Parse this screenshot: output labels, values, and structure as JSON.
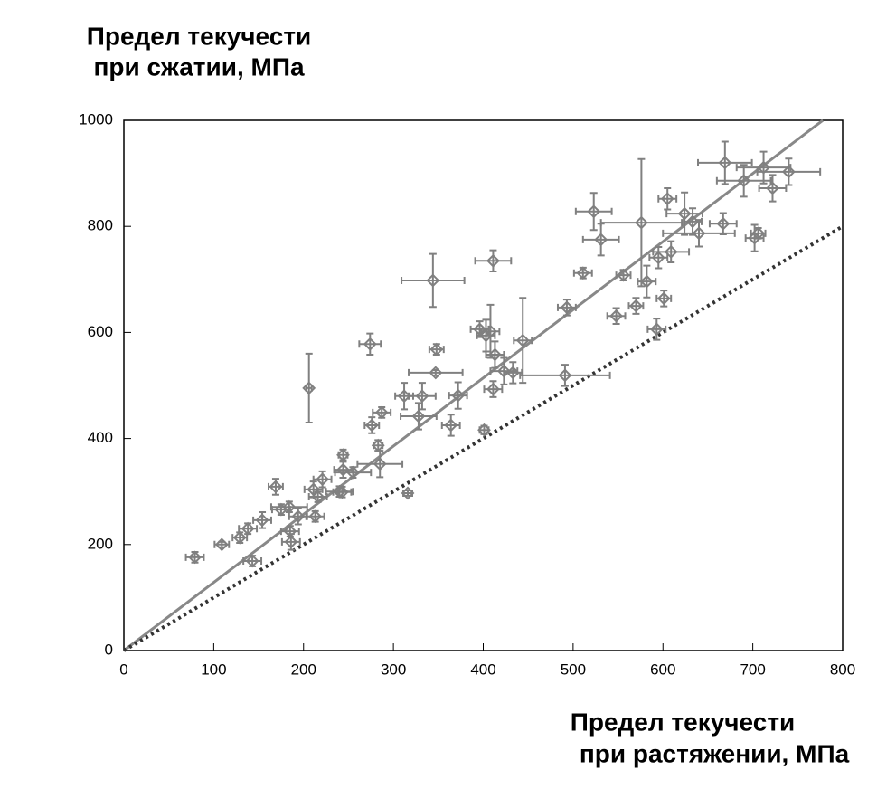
{
  "chart_data": {
    "type": "scatter",
    "ylabel": [
      "Предел текучести",
      "при сжатии, МПа"
    ],
    "xlabel": [
      "Предел текучести",
      "при растяжении, МПа"
    ],
    "xlim": [
      0,
      800
    ],
    "ylim": [
      0,
      1000
    ],
    "xticks": [
      0,
      100,
      200,
      300,
      400,
      500,
      600,
      700,
      800
    ],
    "yticks": [
      0,
      200,
      400,
      600,
      800,
      1000
    ],
    "series": [
      {
        "color": "#808080",
        "x": [
          79,
          109,
          138,
          143,
          129,
          154,
          169,
          175,
          185,
          186,
          194,
          213,
          184,
          206,
          211,
          221,
          216,
          240,
          244,
          244,
          243,
          255,
          274,
          276,
          283,
          285,
          287,
          316,
          312,
          332,
          328,
          347,
          344,
          348,
          364,
          372,
          401,
          396,
          403,
          408,
          411,
          413,
          411,
          423,
          433,
          444,
          493,
          491,
          511,
          523,
          531,
          556,
          548,
          570,
          576,
          582,
          593,
          595,
          601,
          605,
          609,
          624,
          633,
          640,
          669,
          667,
          690,
          702,
          706,
          712,
          740,
          722
        ],
        "values": [
          176,
          200,
          230,
          169,
          213,
          246,
          309,
          266,
          225,
          205,
          253,
          253,
          271,
          495,
          304,
          323,
          290,
          300,
          369,
          341,
          299,
          336,
          578,
          425,
          387,
          352,
          449,
          297,
          480,
          480,
          442,
          524,
          698,
          568,
          425,
          481,
          416,
          606,
          594,
          602,
          735,
          558,
          493,
          527,
          524,
          585,
          647,
          519,
          712,
          828,
          775,
          708,
          631,
          650,
          807,
          696,
          606,
          741,
          664,
          852,
          752,
          824,
          809,
          787,
          920,
          805,
          886,
          778,
          787,
          911,
          903,
          872
        ],
        "xerr": [
          10,
          8,
          10,
          10,
          8,
          10,
          8,
          10,
          10,
          10,
          10,
          10,
          20,
          3,
          10,
          10,
          10,
          15,
          5,
          10,
          10,
          20,
          12,
          8,
          5,
          25,
          10,
          5,
          10,
          15,
          20,
          30,
          35,
          8,
          10,
          10,
          5,
          10,
          10,
          10,
          20,
          10,
          10,
          15,
          10,
          10,
          10,
          50,
          10,
          20,
          20,
          8,
          10,
          8,
          45,
          10,
          10,
          10,
          8,
          10,
          20,
          20,
          10,
          40,
          30,
          15,
          30,
          10,
          8,
          30,
          35,
          15
        ],
        "yerr": [
          10,
          5,
          10,
          10,
          10,
          15,
          15,
          10,
          10,
          15,
          15,
          10,
          10,
          65,
          15,
          15,
          10,
          10,
          10,
          15,
          10,
          10,
          20,
          15,
          10,
          25,
          10,
          5,
          25,
          25,
          25,
          5,
          50,
          10,
          20,
          25,
          8,
          15,
          30,
          50,
          20,
          25,
          15,
          25,
          20,
          80,
          15,
          20,
          10,
          35,
          30,
          10,
          15,
          15,
          120,
          30,
          20,
          20,
          15,
          20,
          20,
          40,
          25,
          25,
          40,
          20,
          30,
          25,
          10,
          30,
          25,
          25
        ]
      }
    ],
    "lines": [
      {
        "x": [
          0,
          778
        ],
        "values": [
          0,
          1000
        ],
        "color": "#888888",
        "style": "solid"
      },
      {
        "x": [
          0,
          800
        ],
        "values": [
          0,
          800
        ],
        "color": "#333333",
        "style": "dotted"
      }
    ]
  }
}
